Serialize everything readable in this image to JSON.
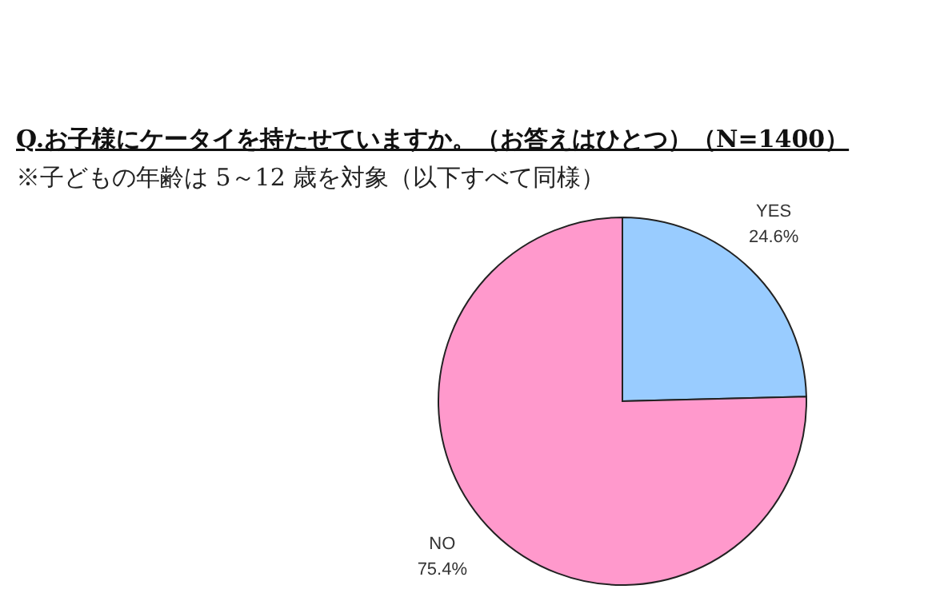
{
  "chart_data": {
    "type": "pie",
    "title": "Q.お子様にケータイを持たせていますか。（お答えはひとつ）（N=1400）",
    "subtitle": "※子どもの年齢は 5～12 歳を対象（以下すべて同様）",
    "categories": [
      "YES",
      "NO"
    ],
    "values": [
      24.6,
      75.4
    ],
    "colors": [
      "#99ccff",
      "#ff99cc"
    ],
    "value_labels": [
      "24.6%",
      "75.4%"
    ]
  }
}
